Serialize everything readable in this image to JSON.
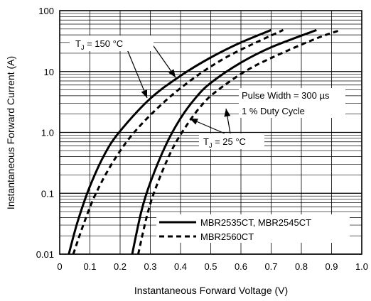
{
  "chart_data": {
    "type": "line",
    "xlabel": "Instantaneous Forward Voltage (V)",
    "ylabel": "Instantaneous Forward Current (A)",
    "xlim": [
      0,
      1.0
    ],
    "ylim": [
      0.01,
      100
    ],
    "y_scale": "log",
    "grid": "on",
    "x_ticks": [
      "0",
      "0.1",
      "0.2",
      "0.3",
      "0.4",
      "0.5",
      "0.6",
      "0.7",
      "0.8",
      "0.9",
      "1.0"
    ],
    "y_ticks": [
      "0.01",
      "0.1",
      "1.0",
      "10",
      "100"
    ],
    "legend": {
      "placement": "bottom-right",
      "entries": [
        {
          "label": "MBR2535CT, MBR2545CT",
          "style": "solid"
        },
        {
          "label": "MBR2560CT",
          "style": "dashed"
        }
      ]
    },
    "annotations": {
      "tj_150": {
        "prefix": "T",
        "sub": "J",
        "suffix": " = 150 °C"
      },
      "tj_25": {
        "prefix": "T",
        "sub": "J",
        "suffix": " = 25 °C"
      },
      "pulse_width": "Pulse Width = 300 µs",
      "duty_cycle": "1 % Duty Cycle"
    },
    "series": [
      {
        "style": "solid",
        "x": [
          0.03,
          0.06,
          0.1,
          0.15,
          0.2,
          0.3,
          0.4,
          0.5,
          0.6,
          0.7
        ],
        "y": [
          0.01,
          0.035,
          0.13,
          0.45,
          1.05,
          3.6,
          8.5,
          17,
          30,
          48
        ]
      },
      {
        "style": "dashed",
        "x": [
          0.045,
          0.08,
          0.12,
          0.18,
          0.25,
          0.35,
          0.45,
          0.55,
          0.65,
          0.74
        ],
        "y": [
          0.01,
          0.032,
          0.1,
          0.35,
          1.05,
          3.3,
          8.2,
          17,
          30,
          48
        ]
      },
      {
        "style": "solid",
        "x": [
          0.24,
          0.27,
          0.3,
          0.35,
          0.4,
          0.45,
          0.5,
          0.6,
          0.7,
          0.85
        ],
        "y": [
          0.01,
          0.05,
          0.15,
          0.6,
          1.7,
          3.7,
          6.5,
          14,
          25,
          48
        ]
      },
      {
        "style": "dashed",
        "x": [
          0.26,
          0.29,
          0.32,
          0.37,
          0.42,
          0.47,
          0.52,
          0.62,
          0.72,
          0.85,
          0.93
        ],
        "y": [
          0.01,
          0.045,
          0.13,
          0.5,
          1.3,
          2.8,
          4.8,
          10.5,
          18.5,
          35,
          48
        ]
      }
    ]
  }
}
